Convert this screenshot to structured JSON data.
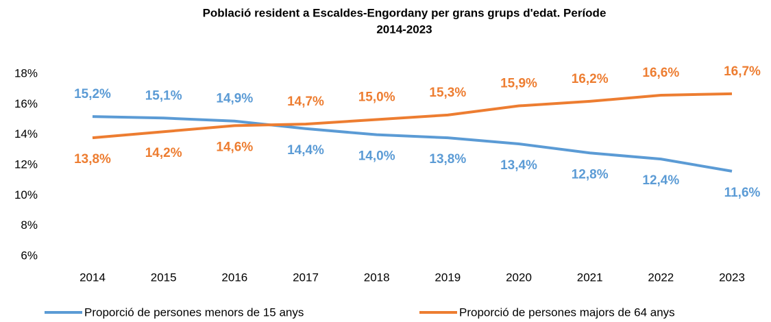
{
  "chart_data": {
    "type": "line",
    "title": [
      "Població resident a Escaldes-Engordany  per grans grups d'edat. Període",
      "2014-2023"
    ],
    "categories": [
      "2014",
      "2015",
      "2016",
      "2017",
      "2018",
      "2019",
      "2020",
      "2021",
      "2022",
      "2023"
    ],
    "series": [
      {
        "name": "Proporció de persones menors de 15 anys",
        "color": "#5b9bd5",
        "values": [
          15.2,
          15.1,
          14.9,
          14.4,
          14.0,
          13.8,
          13.4,
          12.8,
          12.4,
          11.6
        ],
        "value_labels": [
          "15,2%",
          "15,1%",
          "14,9%",
          "14,4%",
          "14,0%",
          "13,8%",
          "13,4%",
          "12,8%",
          "12,4%",
          "11,6%"
        ]
      },
      {
        "name": "Proporció de persones majors de 64 anys",
        "color": "#ed7d31",
        "values": [
          13.8,
          14.2,
          14.6,
          14.7,
          15.0,
          15.3,
          15.9,
          16.2,
          16.6,
          16.7
        ],
        "value_labels": [
          "13,8%",
          "14,2%",
          "14,6%",
          "14,7%",
          "15,0%",
          "15,3%",
          "15,9%",
          "16,2%",
          "16,6%",
          "16,7%"
        ]
      }
    ],
    "ylim": [
      6,
      18
    ],
    "yticks": [
      {
        "value": 6,
        "label": "6%"
      },
      {
        "value": 8,
        "label": "8%"
      },
      {
        "value": 10,
        "label": "10%"
      },
      {
        "value": 12,
        "label": "12%"
      },
      {
        "value": 14,
        "label": "14%"
      },
      {
        "value": 16,
        "label": "16%"
      },
      {
        "value": 18,
        "label": "18%"
      }
    ],
    "grid": false,
    "legend": "bottom"
  }
}
